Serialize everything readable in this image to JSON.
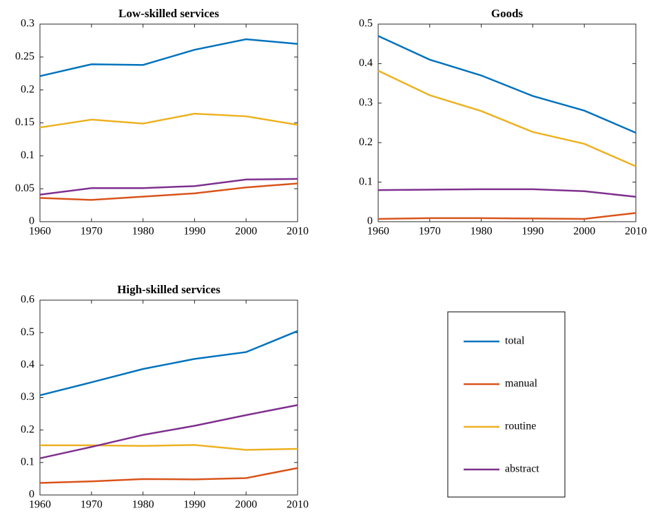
{
  "chart_data": [
    {
      "type": "line",
      "title": "Low-skilled services",
      "x": [
        1960,
        1970,
        1980,
        1990,
        2000,
        2010
      ],
      "xlim": [
        1960,
        2010
      ],
      "xticks": [
        1960,
        1970,
        1980,
        1990,
        2000,
        2010
      ],
      "ylim": [
        0,
        0.3
      ],
      "yticks": [
        0,
        0.05,
        0.1,
        0.15,
        0.2,
        0.25,
        0.3
      ],
      "series": [
        {
          "name": "total",
          "color": "#0072bd",
          "values": [
            0.221,
            0.239,
            0.238,
            0.261,
            0.277,
            0.27
          ]
        },
        {
          "name": "manual",
          "color": "#d95319",
          "values": [
            0.036,
            0.033,
            0.038,
            0.043,
            0.052,
            0.058
          ]
        },
        {
          "name": "routine",
          "color": "#edb120",
          "values": [
            0.143,
            0.155,
            0.149,
            0.164,
            0.16,
            0.147
          ]
        },
        {
          "name": "abstract",
          "color": "#7e2f8e",
          "values": [
            0.041,
            0.051,
            0.051,
            0.054,
            0.064,
            0.065
          ]
        }
      ]
    },
    {
      "type": "line",
      "title": "Goods",
      "x": [
        1960,
        1970,
        1980,
        1990,
        2000,
        2010
      ],
      "xlim": [
        1960,
        2010
      ],
      "xticks": [
        1960,
        1970,
        1980,
        1990,
        2000,
        2010
      ],
      "ylim": [
        0,
        0.5
      ],
      "yticks": [
        0,
        0.1,
        0.2,
        0.3,
        0.4,
        0.5
      ],
      "series": [
        {
          "name": "total",
          "color": "#0072bd",
          "values": [
            0.47,
            0.41,
            0.37,
            0.318,
            0.281,
            0.225
          ]
        },
        {
          "name": "manual",
          "color": "#d95319",
          "values": [
            0.007,
            0.009,
            0.009,
            0.008,
            0.007,
            0.022
          ]
        },
        {
          "name": "routine",
          "color": "#edb120",
          "values": [
            0.382,
            0.32,
            0.28,
            0.227,
            0.197,
            0.14
          ]
        },
        {
          "name": "abstract",
          "color": "#7e2f8e",
          "values": [
            0.08,
            0.081,
            0.082,
            0.082,
            0.077,
            0.063
          ]
        }
      ]
    },
    {
      "type": "line",
      "title": "High-skilled services",
      "x": [
        1960,
        1970,
        1980,
        1990,
        2000,
        2010
      ],
      "xlim": [
        1960,
        2010
      ],
      "xticks": [
        1960,
        1970,
        1980,
        1990,
        2000,
        2010
      ],
      "ylim": [
        0,
        0.6
      ],
      "yticks": [
        0,
        0.1,
        0.2,
        0.3,
        0.4,
        0.5,
        0.6
      ],
      "series": [
        {
          "name": "total",
          "color": "#0072bd",
          "values": [
            0.307,
            0.347,
            0.388,
            0.419,
            0.44,
            0.505
          ]
        },
        {
          "name": "manual",
          "color": "#d95319",
          "values": [
            0.037,
            0.042,
            0.049,
            0.048,
            0.052,
            0.083
          ]
        },
        {
          "name": "routine",
          "color": "#edb120",
          "values": [
            0.153,
            0.153,
            0.151,
            0.154,
            0.139,
            0.142
          ]
        },
        {
          "name": "abstract",
          "color": "#7e2f8e",
          "values": [
            0.113,
            0.148,
            0.185,
            0.213,
            0.246,
            0.277
          ]
        }
      ]
    }
  ]
}
